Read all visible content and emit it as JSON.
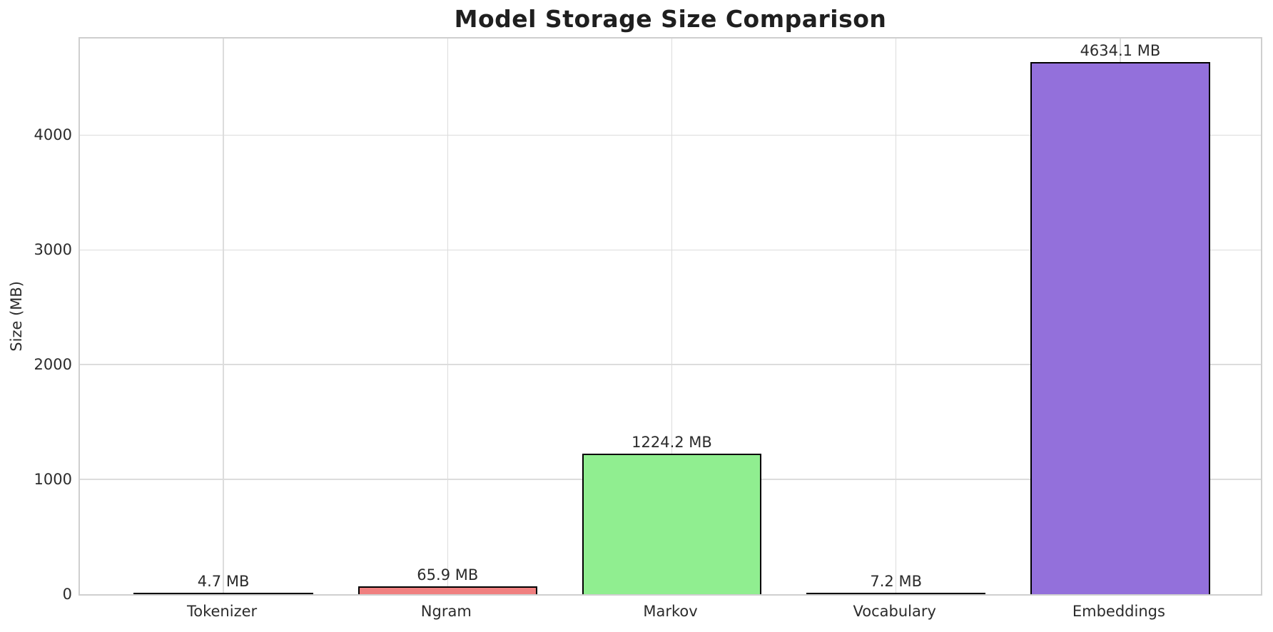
{
  "chart_data": {
    "type": "bar",
    "title": "Model Storage Size Comparison",
    "xlabel": "",
    "ylabel": "Size (MB)",
    "categories": [
      "Tokenizer",
      "Ngram",
      "Markov",
      "Vocabulary",
      "Embeddings"
    ],
    "values": [
      4.7,
      65.9,
      1224.2,
      7.2,
      4634.1
    ],
    "value_labels": [
      "4.7 MB",
      "65.9 MB",
      "1224.2 MB",
      "7.2 MB",
      "4634.1 MB"
    ],
    "bar_colors": [
      "#87CEEB",
      "#F08080",
      "#90EE90",
      "#FFD700",
      "#9370DB"
    ],
    "bar_edge_color": "#000000",
    "yticks": [
      0,
      1000,
      2000,
      3000,
      4000
    ],
    "ylim": [
      0,
      4866
    ],
    "grid": true,
    "legend_position": "none",
    "background_color": "#ffffff",
    "grid_color": "#dcdcdc",
    "spine_color": "#cfcfcf",
    "text_color": "#2b2b2b"
  }
}
